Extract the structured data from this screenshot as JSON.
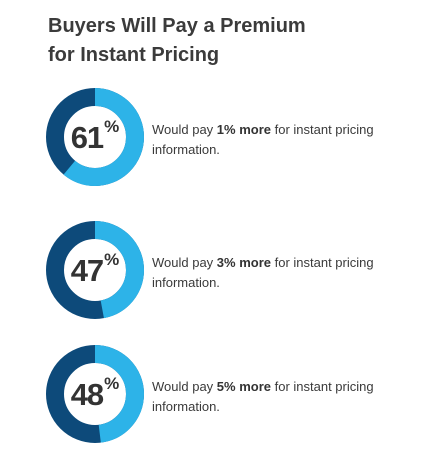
{
  "title": {
    "line1": "Buyers Will Pay a Premium",
    "line2": "for Instant Pricing"
  },
  "colors": {
    "ring_value": "#2db3e8",
    "ring_rest": "#0d4a7a",
    "text": "#3a3a3a"
  },
  "chart_data": [
    {
      "type": "pie",
      "value_percent": 61,
      "label": "61",
      "sign": "%",
      "text_before": "Would pay ",
      "text_bold": "1% more",
      "text_after": " for instant pricing information."
    },
    {
      "type": "pie",
      "value_percent": 47,
      "label": "47",
      "sign": "%",
      "text_before": "Would pay ",
      "text_bold": "3% more",
      "text_after": " for instant pricing information."
    },
    {
      "type": "pie",
      "value_percent": 48,
      "label": "48",
      "sign": "%",
      "text_before": "Would pay ",
      "text_bold": "5% more",
      "text_after": " for instant pricing information."
    }
  ]
}
